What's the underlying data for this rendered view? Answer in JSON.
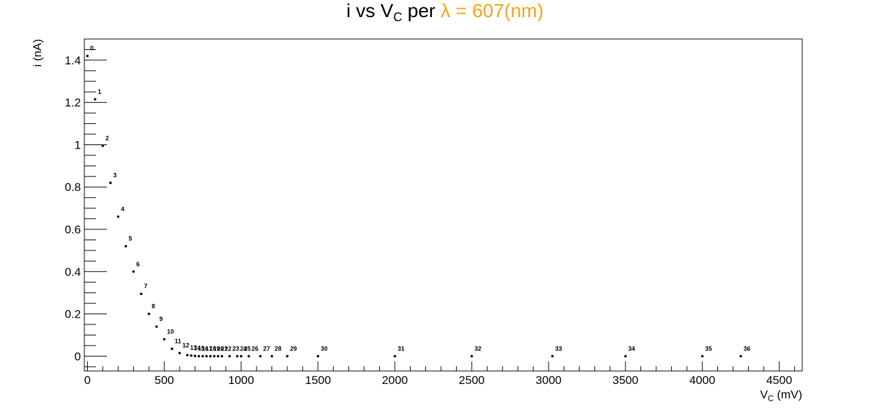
{
  "chart_data": {
    "type": "scatter",
    "title": {
      "main": "i vs V",
      "main_sub": "C",
      "middle": " per ",
      "highlight": "λ = 607(nm)"
    },
    "xlabel": {
      "text": "V",
      "sub": "C",
      "unit": " (mV)"
    },
    "ylabel": "i (nA)",
    "xlim": [
      -20,
      4650
    ],
    "ylim": [
      -0.07,
      1.5
    ],
    "xticks": [
      0,
      500,
      1000,
      1500,
      2000,
      2500,
      3000,
      3500,
      4000,
      4500
    ],
    "yticks": [
      0,
      0.2,
      0.4,
      0.6,
      0.8,
      1,
      1.2,
      1.4
    ],
    "ytick_labels": [
      "0",
      "0.2",
      "0.4",
      "0.6",
      "0.8",
      "1",
      "1.2",
      "1.4"
    ],
    "grid": false,
    "legend": "none",
    "colors": {
      "highlight": "#f5a31c",
      "points": "#000000"
    },
    "points": [
      {
        "label": "0",
        "x": 0,
        "y": 1.42
      },
      {
        "label": "1",
        "x": 50,
        "y": 1.215
      },
      {
        "label": "2",
        "x": 100,
        "y": 0.995
      },
      {
        "label": "3",
        "x": 150,
        "y": 0.82
      },
      {
        "label": "4",
        "x": 200,
        "y": 0.66
      },
      {
        "label": "5",
        "x": 250,
        "y": 0.52
      },
      {
        "label": "6",
        "x": 300,
        "y": 0.4
      },
      {
        "label": "7",
        "x": 350,
        "y": 0.295
      },
      {
        "label": "8",
        "x": 400,
        "y": 0.2
      },
      {
        "label": "9",
        "x": 450,
        "y": 0.14
      },
      {
        "label": "10",
        "x": 500,
        "y": 0.08
      },
      {
        "label": "11",
        "x": 550,
        "y": 0.035
      },
      {
        "label": "12",
        "x": 600,
        "y": 0.015
      },
      {
        "label": "13",
        "x": 650,
        "y": 0.005
      },
      {
        "label": "14",
        "x": 675,
        "y": 0.003
      },
      {
        "label": "15",
        "x": 700,
        "y": 0.001
      },
      {
        "label": "16",
        "x": 725,
        "y": 0.0
      },
      {
        "label": "17",
        "x": 750,
        "y": 0.0
      },
      {
        "label": "18",
        "x": 775,
        "y": 0.0
      },
      {
        "label": "19",
        "x": 800,
        "y": 0.0
      },
      {
        "label": "20",
        "x": 825,
        "y": 0.0
      },
      {
        "label": "21",
        "x": 850,
        "y": 0.0
      },
      {
        "label": "22",
        "x": 875,
        "y": 0.0
      },
      {
        "label": "23",
        "x": 925,
        "y": 0.0
      },
      {
        "label": "24",
        "x": 975,
        "y": 0.0
      },
      {
        "label": "25",
        "x": 1000,
        "y": 0.0
      },
      {
        "label": "26",
        "x": 1050,
        "y": 0.0
      },
      {
        "label": "27",
        "x": 1125,
        "y": 0.0
      },
      {
        "label": "28",
        "x": 1200,
        "y": 0.0
      },
      {
        "label": "29",
        "x": 1300,
        "y": 0.0
      },
      {
        "label": "30",
        "x": 1500,
        "y": 0.0
      },
      {
        "label": "31",
        "x": 2000,
        "y": 0.0
      },
      {
        "label": "32",
        "x": 2500,
        "y": 0.0
      },
      {
        "label": "33",
        "x": 3025,
        "y": 0.0
      },
      {
        "label": "34",
        "x": 3500,
        "y": 0.0
      },
      {
        "label": "35",
        "x": 4000,
        "y": 0.0
      },
      {
        "label": "36",
        "x": 4250,
        "y": 0.0
      }
    ]
  }
}
